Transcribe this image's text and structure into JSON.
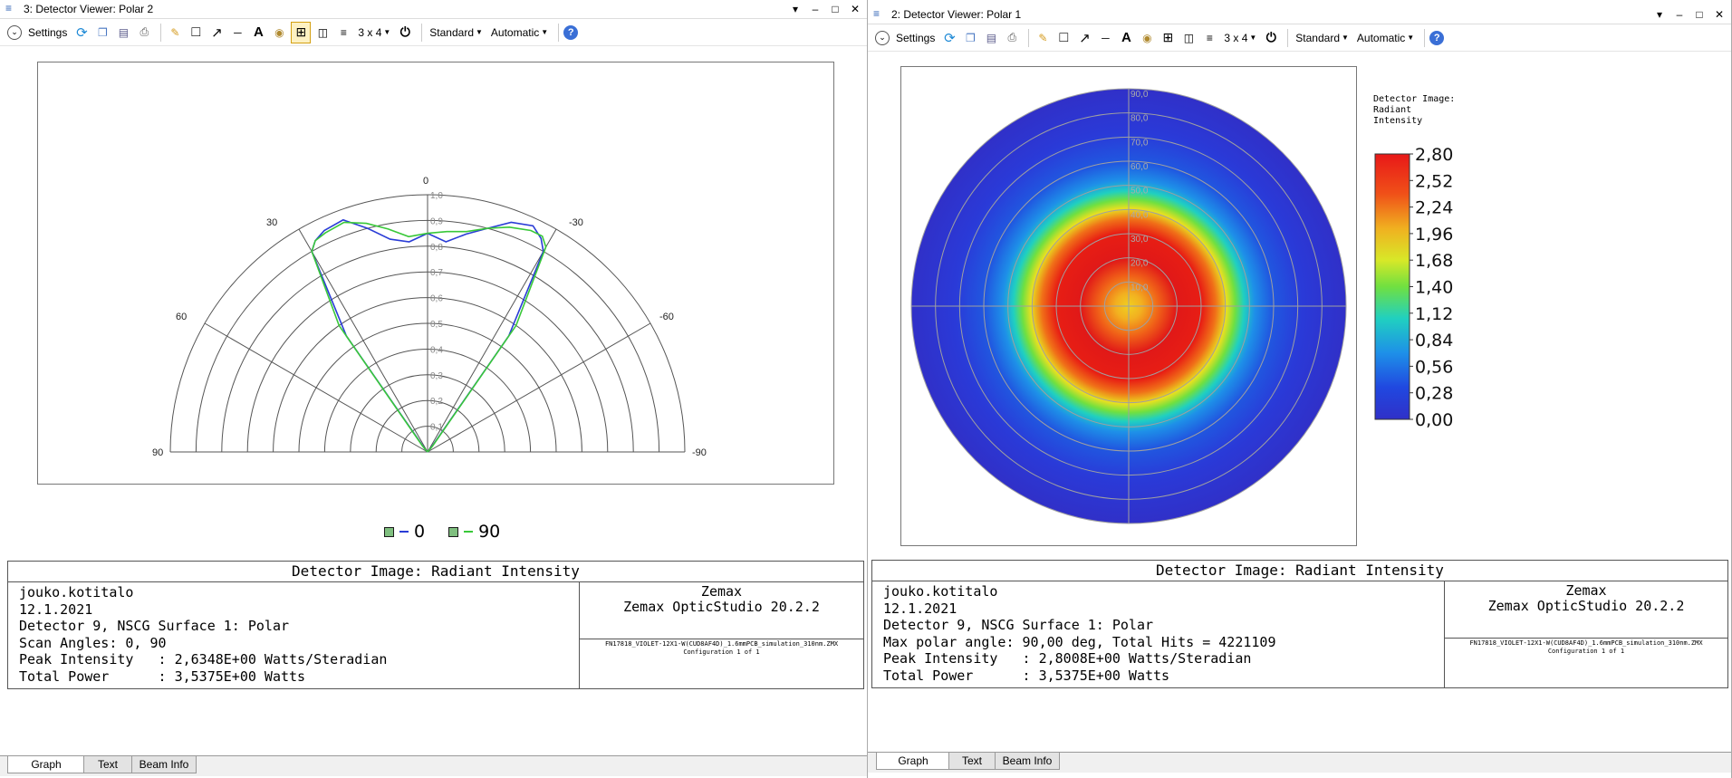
{
  "left_window": {
    "title": "3: Detector Viewer: Polar 2",
    "toolbar": {
      "settings": "Settings",
      "layout": "3 x 4",
      "standard": "Standard",
      "automatic": "Automatic"
    },
    "chart_data": {
      "type": "polar-line",
      "angle_labels": [
        "0",
        "30",
        "-30",
        "60",
        "-60",
        "90",
        "-90"
      ],
      "radial_ticks": [
        "0,1",
        "0,2",
        "0,3",
        "0,4",
        "0,5",
        "0,6",
        "0,7",
        "0,8",
        "0,9",
        "1,0"
      ],
      "series": [
        {
          "name": "0",
          "color": "#2a3cd6",
          "angles": [
            -90,
            -45,
            -40,
            -35,
            -30,
            -28,
            -25,
            -20,
            -15,
            -10,
            -5,
            0,
            5,
            10,
            15,
            20,
            25,
            28,
            30,
            35,
            40,
            45,
            90
          ],
          "values": [
            0,
            0,
            0.02,
            0.55,
            0.9,
            0.94,
            0.97,
            0.95,
            0.9,
            0.86,
            0.82,
            0.85,
            0.82,
            0.84,
            0.9,
            0.96,
            0.95,
            0.93,
            0.9,
            0.55,
            0.02,
            0,
            0
          ]
        },
        {
          "name": "90",
          "color": "#39c839",
          "angles": [
            -90,
            -45,
            -40,
            -35,
            -30,
            -28,
            -25,
            -20,
            -15,
            -10,
            -5,
            0,
            5,
            10,
            15,
            20,
            25,
            28,
            30,
            35,
            40,
            45,
            90
          ],
          "values": [
            0,
            0,
            0.03,
            0.6,
            0.92,
            0.95,
            0.95,
            0.93,
            0.9,
            0.87,
            0.86,
            0.85,
            0.84,
            0.88,
            0.92,
            0.95,
            0.94,
            0.93,
            0.9,
            0.6,
            0.03,
            0,
            0
          ]
        }
      ]
    },
    "legend": [
      {
        "label": "0",
        "color": "#2a3cd6"
      },
      {
        "label": "90",
        "color": "#39c839"
      }
    ],
    "info": {
      "title": "Detector Image: Radiant Intensity",
      "lines": [
        "jouko.kotitalo",
        "12.1.2021",
        "Detector 9, NSCG Surface 1: Polar",
        "Scan Angles: 0, 90",
        "Peak Intensity   : 2,6348E+00 Watts/Steradian",
        "Total Power      : 3,5375E+00 Watts"
      ],
      "company": "Zemax",
      "product": "Zemax OpticStudio 20.2.2",
      "file": "FN17818_VIOLET-12X1-W(CUD8AF4D)_1.6mmPCB_simulation_310nm.ZMX",
      "config": "Configuration 1 of 1"
    },
    "tabs": [
      "Graph",
      "Text",
      "Beam Info"
    ]
  },
  "right_window": {
    "title": "2: Detector Viewer: Polar 1",
    "toolbar": {
      "settings": "Settings",
      "layout": "3 x 4",
      "standard": "Standard",
      "automatic": "Automatic"
    },
    "chart_data": {
      "type": "heatmap",
      "radial_labels": [
        "90,0",
        "80,0",
        "70,0",
        "60,0",
        "50,0",
        "40,0",
        "30,0",
        "20,0",
        "10,0"
      ],
      "colorbar_title": [
        "Detector Image:",
        "Radiant",
        "Intensity"
      ],
      "colorbar_ticks": [
        "2,80",
        "2,52",
        "2,24",
        "1,96",
        "1,68",
        "1,40",
        "1,12",
        "0,84",
        "0,56",
        "0,28",
        "0,00"
      ],
      "value_range": [
        0,
        2.8
      ]
    },
    "info": {
      "title": "Detector Image: Radiant Intensity",
      "lines": [
        "jouko.kotitalo",
        "12.1.2021",
        "Detector 9, NSCG Surface 1: Polar",
        "Max polar angle: 90,00 deg, Total Hits = 4221109",
        "Peak Intensity   : 2,8008E+00 Watts/Steradian",
        "Total Power      : 3,5375E+00 Watts"
      ],
      "company": "Zemax",
      "product": "Zemax OpticStudio 20.2.2",
      "file": "FN17818_VIOLET-12X1-W(CUD8AF4D)_1.6mmPCB_simulation_310nm.ZMX",
      "config": "Configuration 1 of 1"
    },
    "tabs": [
      "Graph",
      "Text",
      "Beam Info"
    ]
  },
  "colors": {
    "accent": "#2b5fb3",
    "help": "#3a6fd6"
  }
}
